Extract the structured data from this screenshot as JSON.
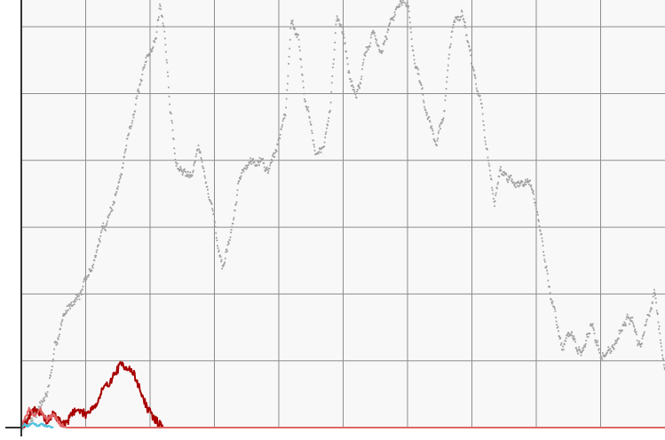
{
  "chart_data": {
    "type": "scatter",
    "title": "",
    "xlabel": "",
    "ylabel": "",
    "xlim": [
      0,
      1000
    ],
    "ylim": [
      0,
      6.4
    ],
    "grid": true,
    "legend": "none",
    "background": "#f8f8f8",
    "grid_color": "#8c8c8c",
    "axis_color": "#333333",
    "x_grid": [
      100,
      200,
      300,
      400,
      500,
      600,
      700,
      800,
      900
    ],
    "y_grid": [
      1,
      2,
      3,
      4,
      5,
      6
    ],
    "series": [
      {
        "style": "dots",
        "color": "#a0a0a0",
        "seed": 7,
        "noise": 0.1,
        "anchors": [
          [
            0,
            0.05
          ],
          [
            15,
            0.15
          ],
          [
            40,
            0.5
          ],
          [
            60,
            1.5
          ],
          [
            80,
            1.95
          ],
          [
            95,
            2.05
          ],
          [
            110,
            2.4
          ],
          [
            125,
            2.9
          ],
          [
            140,
            3.3
          ],
          [
            155,
            3.75
          ],
          [
            170,
            4.6
          ],
          [
            185,
            5.1
          ],
          [
            200,
            5.6
          ],
          [
            210,
            5.9
          ],
          [
            215,
            6.3
          ],
          [
            222,
            6.0
          ],
          [
            230,
            4.9
          ],
          [
            240,
            4.0
          ],
          [
            250,
            3.8
          ],
          [
            265,
            3.9
          ],
          [
            275,
            4.25
          ],
          [
            285,
            3.7
          ],
          [
            295,
            3.4
          ],
          [
            305,
            2.75
          ],
          [
            315,
            2.35
          ],
          [
            325,
            2.8
          ],
          [
            340,
            3.8
          ],
          [
            355,
            4.0
          ],
          [
            370,
            4.1
          ],
          [
            385,
            3.85
          ],
          [
            400,
            4.3
          ],
          [
            410,
            4.7
          ],
          [
            420,
            6.15
          ],
          [
            430,
            5.9
          ],
          [
            440,
            5.0
          ],
          [
            450,
            4.5
          ],
          [
            460,
            4.1
          ],
          [
            470,
            4.2
          ],
          [
            480,
            4.7
          ],
          [
            490,
            6.2
          ],
          [
            500,
            6.0
          ],
          [
            510,
            5.2
          ],
          [
            520,
            5.0
          ],
          [
            530,
            5.3
          ],
          [
            545,
            5.9
          ],
          [
            560,
            5.6
          ],
          [
            575,
            6.1
          ],
          [
            590,
            6.4
          ],
          [
            600,
            6.4
          ],
          [
            610,
            5.6
          ],
          [
            620,
            5.2
          ],
          [
            632,
            4.6
          ],
          [
            645,
            4.3
          ],
          [
            655,
            4.6
          ],
          [
            670,
            6.0
          ],
          [
            685,
            6.3
          ],
          [
            700,
            5.5
          ],
          [
            715,
            4.8
          ],
          [
            725,
            4.1
          ],
          [
            735,
            3.2
          ],
          [
            745,
            3.9
          ],
          [
            760,
            3.7
          ],
          [
            770,
            3.6
          ],
          [
            785,
            3.7
          ],
          [
            800,
            3.3
          ],
          [
            810,
            2.7
          ],
          [
            818,
            2.2
          ],
          [
            828,
            1.8
          ],
          [
            840,
            1.25
          ],
          [
            855,
            1.35
          ],
          [
            870,
            1.05
          ],
          [
            885,
            1.55
          ],
          [
            900,
            1.1
          ],
          [
            915,
            1.15
          ],
          [
            930,
            1.45
          ],
          [
            940,
            1.7
          ],
          [
            950,
            1.55
          ],
          [
            958,
            1.3
          ],
          [
            965,
            1.25
          ],
          [
            975,
            1.7
          ],
          [
            985,
            2.0
          ],
          [
            995,
            1.2
          ],
          [
            1000,
            0.85
          ],
          [
            1010,
            0.55
          ]
        ]
      },
      {
        "style": "line",
        "color": "#a80000",
        "seed": 19,
        "noise": 0.06,
        "anchors": [
          [
            0,
            0.0
          ],
          [
            10,
            0.12
          ],
          [
            20,
            0.3
          ],
          [
            30,
            0.2
          ],
          [
            40,
            0.1
          ],
          [
            50,
            0.2
          ],
          [
            60,
            0.1
          ],
          [
            70,
            0.05
          ],
          [
            80,
            0.25
          ],
          [
            90,
            0.25
          ],
          [
            100,
            0.2
          ],
          [
            110,
            0.3
          ],
          [
            118,
            0.35
          ],
          [
            125,
            0.55
          ],
          [
            135,
            0.65
          ],
          [
            145,
            0.8
          ],
          [
            155,
            0.95
          ],
          [
            165,
            0.9
          ],
          [
            175,
            0.8
          ],
          [
            185,
            0.55
          ],
          [
            195,
            0.3
          ],
          [
            205,
            0.15
          ],
          [
            215,
            0.05
          ],
          [
            220,
            0.0
          ]
        ]
      },
      {
        "style": "line",
        "color": "#e06565",
        "seed": 3,
        "noise": 0.03,
        "anchors": [
          [
            0,
            0.0
          ],
          [
            5,
            0.12
          ],
          [
            12,
            0.28
          ],
          [
            20,
            0.18
          ],
          [
            30,
            0.26
          ],
          [
            40,
            0.12
          ],
          [
            50,
            0.2
          ],
          [
            60,
            0.05
          ],
          [
            70,
            0.0
          ],
          [
            1010,
            0.0
          ]
        ]
      },
      {
        "style": "line",
        "color": "#4fc3df",
        "seed": 11,
        "noise": 0.015,
        "anchors": [
          [
            0,
            0.0
          ],
          [
            5,
            0.05
          ],
          [
            10,
            0.02
          ],
          [
            18,
            0.07
          ],
          [
            25,
            0.03
          ],
          [
            32,
            0.05
          ],
          [
            40,
            0.02
          ],
          [
            50,
            0.0
          ]
        ]
      }
    ]
  }
}
